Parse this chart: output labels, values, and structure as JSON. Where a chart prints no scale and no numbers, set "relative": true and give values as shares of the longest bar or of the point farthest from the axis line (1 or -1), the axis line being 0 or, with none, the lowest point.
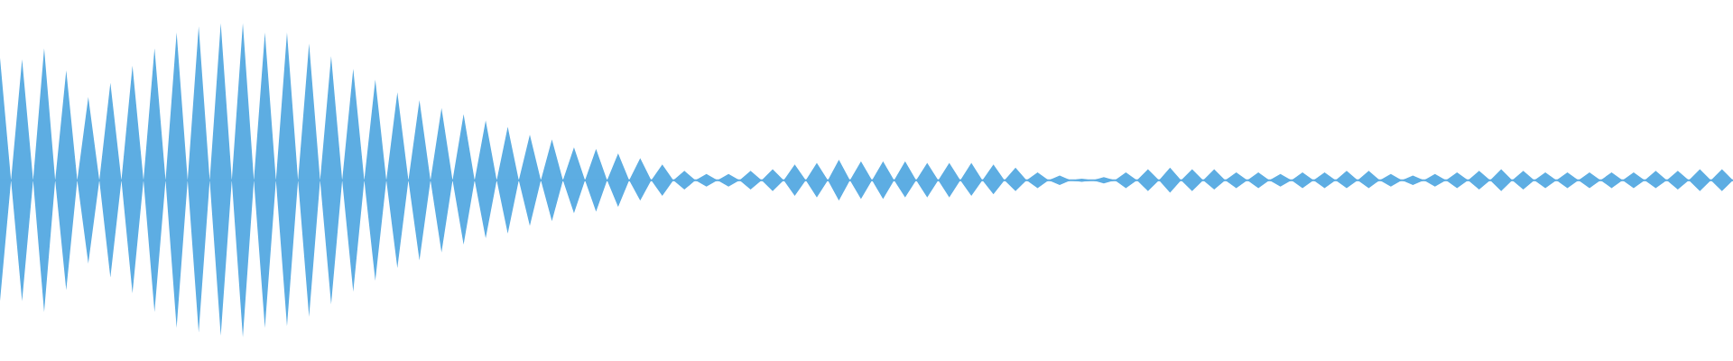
{
  "chart_data": {
    "type": "area",
    "relative": true,
    "categories": [
      null,
      null,
      null,
      null,
      null,
      null,
      null,
      null,
      null,
      null,
      null,
      null,
      null,
      null,
      null,
      null,
      null,
      null,
      null,
      null,
      null,
      null,
      null,
      null,
      null,
      null,
      null,
      null,
      null,
      null,
      null,
      null,
      null,
      null,
      null,
      null,
      null,
      null,
      null,
      null,
      null,
      null,
      null,
      null,
      null,
      null,
      null,
      null,
      null,
      null,
      null,
      null,
      null,
      null,
      null,
      null,
      null,
      null,
      null,
      null,
      null,
      null,
      null,
      null,
      null,
      null,
      null,
      null,
      null,
      null,
      null,
      null,
      null,
      null,
      null,
      null,
      null,
      null,
      null,
      null,
      null,
      null,
      null,
      null,
      null,
      null,
      null,
      null,
      null,
      null,
      null,
      null,
      null,
      null,
      null,
      null,
      null,
      null,
      null,
      null,
      null,
      null,
      null,
      null,
      null,
      null,
      null,
      null,
      null,
      null,
      null,
      null,
      null,
      null,
      null,
      null,
      null,
      null,
      null,
      null,
      null,
      null,
      null,
      null,
      null,
      null,
      null,
      null,
      null,
      null,
      null,
      null,
      null,
      null,
      null,
      null,
      null,
      null,
      null,
      null,
      null,
      null,
      null,
      null,
      null,
      null,
      null,
      null,
      null,
      null,
      null,
      null,
      null,
      null,
      null,
      null,
      null,
      null
    ],
    "series": [
      {
        "color": "#5dade2",
        "values": [
          0.78,
          0,
          0.77,
          0,
          0.84,
          0,
          0.7,
          0,
          0.53,
          0,
          0.62,
          0,
          0.73,
          0,
          0.84,
          0,
          0.94,
          0,
          0.98,
          0,
          1.0,
          0,
          1.0,
          0,
          0.94,
          0,
          0.94,
          0,
          0.87,
          0,
          0.79,
          0,
          0.71,
          0,
          0.64,
          0,
          0.56,
          0,
          0.51,
          0,
          0.46,
          0,
          0.42,
          0,
          0.38,
          0,
          0.34,
          0,
          0.29,
          0,
          0.26,
          0,
          0.21,
          0,
          0.2,
          0,
          0.17,
          0,
          0.14,
          0,
          0.1,
          0,
          0.06,
          0,
          0.04,
          0,
          0.04,
          0,
          0.06,
          0,
          0.07,
          0,
          0.1,
          0,
          0.11,
          0,
          0.13,
          0,
          0.12,
          0,
          0.12,
          0,
          0.12,
          0,
          0.11,
          0,
          0.11,
          0,
          0.11,
          0,
          0.1,
          0,
          0.08,
          0,
          0.05,
          0,
          0.03,
          0,
          0.01,
          0,
          0.02,
          0,
          0.05,
          0,
          0.07,
          0,
          0.08,
          0,
          0.07,
          0,
          0.07,
          0,
          0.05,
          0,
          0.05,
          0,
          0.04,
          0,
          0.05,
          0,
          0.05,
          0,
          0.06,
          0,
          0.06,
          0,
          0.04,
          0,
          0.03,
          0,
          0.04,
          0,
          0.05,
          0,
          0.06,
          0,
          0.07,
          0,
          0.06,
          0,
          0.05,
          0,
          0.05,
          0,
          0.05,
          0,
          0.05,
          0,
          0.05,
          0,
          0.06,
          0,
          0.06,
          0,
          0.07,
          0,
          0.07,
          0
        ]
      },
      {
        "color": "#5dade3",
        "values": [
          -0.77,
          0,
          -0.77,
          0,
          -0.84,
          0,
          -0.7,
          0,
          -0.53,
          0,
          -0.62,
          0,
          -0.72,
          0,
          -0.84,
          0,
          -0.94,
          0,
          -0.97,
          0,
          -0.99,
          0,
          -1.0,
          0,
          -0.94,
          0,
          -0.93,
          0,
          -0.87,
          0,
          -0.79,
          0,
          -0.71,
          0,
          -0.64,
          0,
          -0.56,
          0,
          -0.51,
          0,
          -0.46,
          0,
          -0.41,
          0,
          -0.37,
          0,
          -0.34,
          0,
          -0.29,
          0,
          -0.26,
          0,
          -0.21,
          0,
          -0.2,
          0,
          -0.17,
          0,
          -0.13,
          0,
          -0.1,
          0,
          -0.06,
          0,
          -0.04,
          0,
          -0.04,
          0,
          -0.06,
          0,
          -0.07,
          0,
          -0.1,
          0,
          -0.11,
          0,
          -0.13,
          0,
          -0.12,
          0,
          -0.12,
          0,
          -0.11,
          0,
          -0.11,
          0,
          -0.11,
          0,
          -0.1,
          0,
          -0.09,
          0,
          -0.07,
          0,
          -0.05,
          0,
          -0.03,
          0,
          -0.01,
          0,
          -0.02,
          0,
          -0.05,
          0,
          -0.07,
          0,
          -0.08,
          0,
          -0.07,
          0,
          -0.06,
          0,
          -0.05,
          0,
          -0.05,
          0,
          -0.04,
          0,
          -0.05,
          0,
          -0.05,
          0,
          -0.05,
          0,
          -0.05,
          0,
          -0.04,
          0,
          -0.03,
          0,
          -0.04,
          0,
          -0.05,
          0,
          -0.06,
          0,
          -0.07,
          0,
          -0.06,
          0,
          -0.05,
          0,
          -0.05,
          0,
          -0.05,
          0,
          -0.05,
          0,
          -0.05,
          0,
          -0.05,
          0,
          -0.06,
          0,
          -0.07,
          0,
          -0.07,
          0
        ]
      }
    ],
    "ref_lines": [
      {
        "axis": "y",
        "value": 0,
        "color": "#5dade2"
      }
    ]
  }
}
